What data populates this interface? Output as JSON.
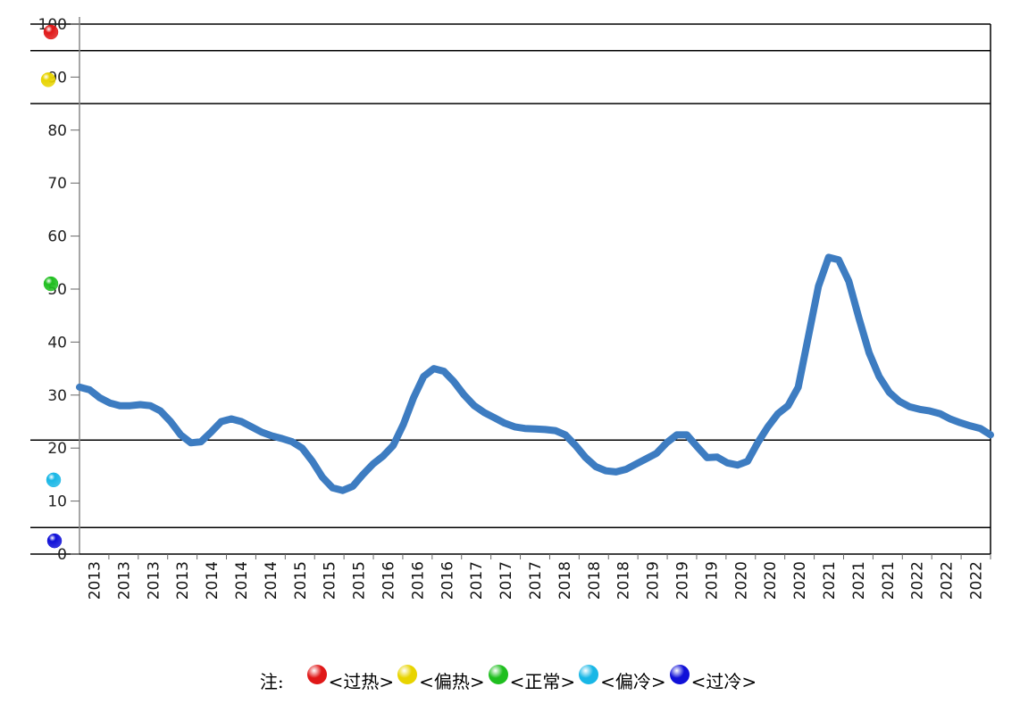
{
  "chart_data": {
    "type": "line",
    "ylim": [
      0,
      100
    ],
    "yticks": [
      0,
      10,
      20,
      30,
      40,
      50,
      60,
      70,
      80,
      90,
      100
    ],
    "x_tick_labels": [
      "2013",
      "2013",
      "2013",
      "2013",
      "2014",
      "2014",
      "2014",
      "2015",
      "2015",
      "2015",
      "2016",
      "2016",
      "2016",
      "2017",
      "2017",
      "2017",
      "2018",
      "2018",
      "2018",
      "2019",
      "2019",
      "2019",
      "2020",
      "2020",
      "2020",
      "2021",
      "2021",
      "2021",
      "2022",
      "2022",
      "2022"
    ],
    "zone_boundaries": [
      95,
      85,
      21.5,
      5
    ],
    "zone_colors": [
      "#e01818",
      "#e8d400",
      "#1fbf1f",
      "#19b7e6",
      "#1010d8"
    ],
    "zone_marker_levels": [
      98.5,
      89.5,
      51,
      14,
      2.5
    ],
    "series": [
      {
        "color": "#3d7cc1",
        "values": [
          31.5,
          31,
          29.5,
          28.5,
          28,
          28,
          28.2,
          28,
          27,
          25,
          22.5,
          21,
          21.2,
          23,
          25,
          25.5,
          25,
          24,
          23,
          22.3,
          21.8,
          21.2,
          20,
          17.5,
          14.5,
          12.5,
          12,
          12.8,
          15,
          17,
          18.5,
          20.5,
          24.5,
          29.5,
          33.5,
          35,
          34.5,
          32.5,
          30,
          28,
          26.7,
          25.7,
          24.7,
          24,
          23.7,
          23.6,
          23.5,
          23.3,
          22.5,
          20.5,
          18.2,
          16.5,
          15.7,
          15.5,
          16,
          17,
          18,
          19,
          21,
          22.5,
          22.5,
          20.3,
          18.2,
          18.3,
          17.2,
          16.8,
          17.5,
          21,
          24,
          26.5,
          28,
          31.5,
          41,
          50.5,
          56,
          55.5,
          51.5,
          44.5,
          38,
          33.5,
          30.5,
          28.8,
          27.8,
          27.3,
          27,
          26.5,
          25.5,
          24.8,
          24.2,
          23.7,
          22.5
        ]
      }
    ]
  },
  "legend": {
    "prefix": "注:",
    "items": [
      {
        "label": "<过热>",
        "color": "#e01818"
      },
      {
        "label": "<偏热>",
        "color": "#e8d400"
      },
      {
        "label": "<正常>",
        "color": "#1fbf1f"
      },
      {
        "label": "<偏冷>",
        "color": "#19b7e6"
      },
      {
        "label": "<过冷>",
        "color": "#1010d8"
      }
    ]
  }
}
